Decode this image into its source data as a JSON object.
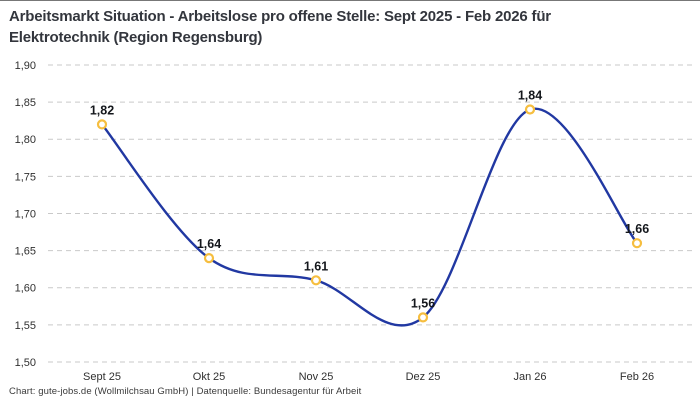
{
  "title": {
    "line1": "Arbeitsmarkt Situation - Arbeitslose pro offene Stelle: Sept 2025 - Feb 2026 für",
    "line2": "Elektrotechnik (Region Regensburg)",
    "full": "Arbeitsmarkt Situation - Arbeitslose pro offene Stelle: Sept 2025 - Feb 2026 für Elektrotechnik (Region Regensburg)"
  },
  "footer": "Chart: gute-jobs.de (Wollmilchsau GmbH) | Datenquelle: Bundesagentur für Arbeit",
  "chart_data": {
    "type": "line",
    "title": "Arbeitsmarkt Situation - Arbeitslose pro offene Stelle: Sept 2025 - Feb 2026 für Elektrotechnik (Region Regensburg)",
    "categories": [
      "Sept 25",
      "Okt 25",
      "Nov 25",
      "Dez 25",
      "Jan 26",
      "Feb 26"
    ],
    "values": [
      1.82,
      1.64,
      1.61,
      1.56,
      1.84,
      1.66
    ],
    "value_labels": [
      "1,82",
      "1,64",
      "1,61",
      "1,56",
      "1,84",
      "1,66"
    ],
    "xlabel": "",
    "ylabel": "",
    "ylim": [
      1.5,
      1.9
    ],
    "yticks": {
      "values": [
        1.9,
        1.85,
        1.8,
        1.75,
        1.7,
        1.65,
        1.6,
        1.55,
        1.5
      ],
      "labels": [
        "1,90",
        "1,85",
        "1,80",
        "1,75",
        "1,70",
        "1,65",
        "1,60",
        "1,55",
        "1,50"
      ]
    },
    "grid": "horizontal-dashed",
    "legend": "none",
    "smooth": true,
    "colors": {
      "line": "#2138A2",
      "marker_stroke": "#F6BE3F",
      "marker_fill": "#FFFFFF",
      "grid": "#C9C9C9",
      "tick_text": "#303030",
      "data_label": "#14171C",
      "title_text": "#33363D",
      "footer_text": "#3A3A3A"
    }
  }
}
